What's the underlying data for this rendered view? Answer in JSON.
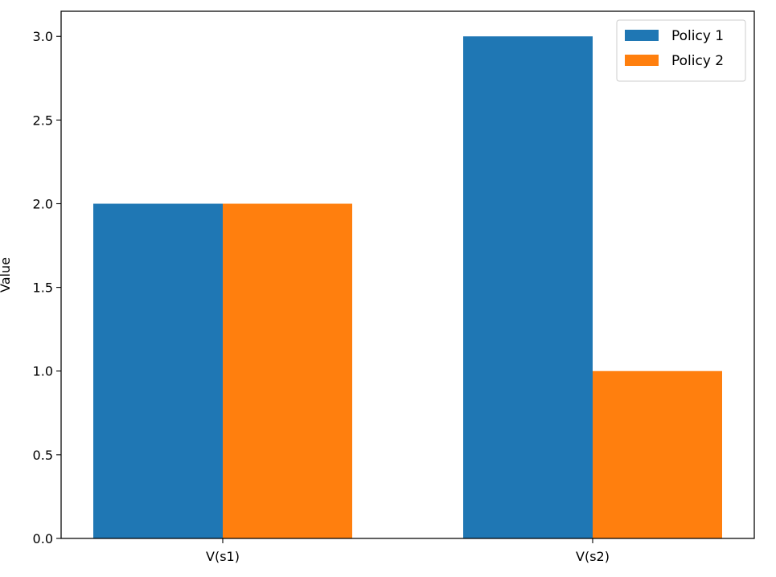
{
  "chart_data": {
    "type": "bar",
    "title": "",
    "xlabel": "",
    "ylabel": "Value",
    "categories": [
      "V(s1)",
      "V(s2)"
    ],
    "series": [
      {
        "name": "Policy 1",
        "values": [
          2.0,
          3.0
        ],
        "color": "#1f77b4"
      },
      {
        "name": "Policy 2",
        "values": [
          2.0,
          1.0
        ],
        "color": "#ff7f0e"
      }
    ],
    "ylim": [
      0,
      3.15
    ],
    "yticks": [
      "0.0",
      "0.5",
      "1.0",
      "1.5",
      "2.0",
      "2.5",
      "3.0"
    ],
    "grid": false,
    "legend": "top-right"
  }
}
